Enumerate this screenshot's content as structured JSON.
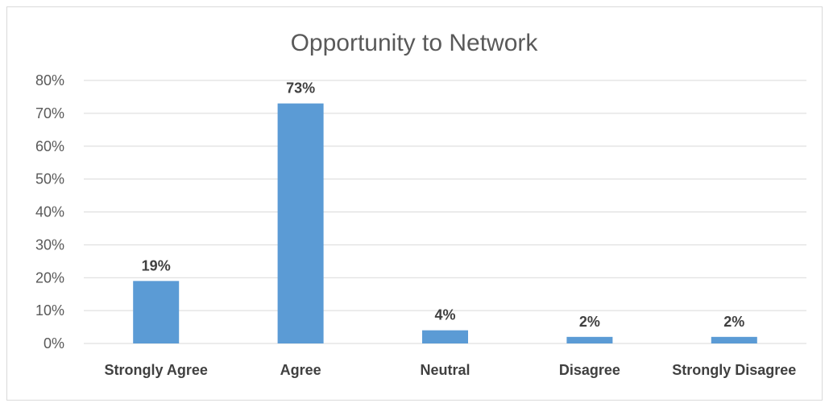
{
  "chart_data": {
    "type": "bar",
    "title": "Opportunity to Network",
    "categories": [
      "Strongly Agree",
      "Agree",
      "Neutral",
      "Disagree",
      "Strongly Disagree"
    ],
    "values": [
      19,
      73,
      4,
      2,
      2
    ],
    "data_labels": [
      "19%",
      "73%",
      "4%",
      "2%",
      "2%"
    ],
    "y_ticks": [
      "0%",
      "10%",
      "20%",
      "30%",
      "40%",
      "50%",
      "60%",
      "70%",
      "80%"
    ],
    "ylim": [
      0,
      80
    ],
    "grid": true,
    "legend": "none",
    "bar_color": "#5b9bd5",
    "grid_color": "#d9d9d9"
  }
}
